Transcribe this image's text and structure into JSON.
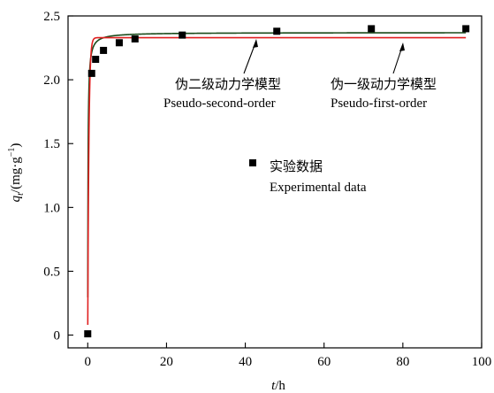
{
  "chart_data": {
    "type": "scatter",
    "xlabel": "t/h",
    "ylabel": "q_t/(mg·g⁻¹)",
    "xlim": [
      -5,
      100
    ],
    "ylim": [
      -0.1,
      2.5
    ],
    "x_ticks": [
      "0",
      "20",
      "40",
      "60",
      "80",
      "100"
    ],
    "y_ticks": [
      "0",
      "0.5",
      "1.0",
      "1.5",
      "2.0",
      "2.5"
    ],
    "grid": false,
    "series": [
      {
        "name_cn": "实验数据",
        "name_en": "Experimental data",
        "kind": "points",
        "color": "#000000",
        "x": [
          0,
          1,
          2,
          4,
          8,
          12,
          24,
          48,
          72,
          96
        ],
        "y": [
          0.01,
          2.05,
          2.16,
          2.23,
          2.29,
          2.32,
          2.35,
          2.38,
          2.4,
          2.4
        ]
      },
      {
        "name_cn": "伪二级动力学模型",
        "name_en": "Pseudo-second-order",
        "kind": "line",
        "color": "#1a4a1a",
        "model": "pseudo-second-order",
        "qe": 2.37,
        "k": 6.0
      },
      {
        "name_cn": "伪一级动力学模型",
        "name_en": "Pseudo-first-order",
        "kind": "line",
        "color": "#e02020",
        "model": "pseudo-first-order",
        "qe": 2.33,
        "k": 3.5
      }
    ]
  }
}
